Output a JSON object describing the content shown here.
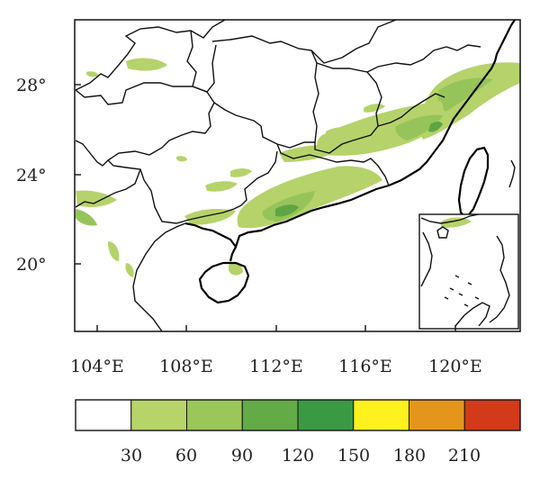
{
  "map": {
    "lat_ticks": [
      "28°",
      "24°",
      "20°"
    ],
    "lon_ticks": [
      "104°E",
      "108°E",
      "112°E",
      "116°E",
      "120°E"
    ],
    "lat_range": [
      17,
      31
    ],
    "lon_range": [
      103,
      123
    ],
    "precip_colors": {
      "light": "#b5d36a",
      "mid": "#96c45a",
      "dark": "#5fa543",
      "darker": "#3d9a45"
    }
  },
  "colorbar": {
    "labels": [
      "30",
      "60",
      "90",
      "120",
      "150",
      "180",
      "210"
    ],
    "colors": [
      "#ffffff",
      "#b7d468",
      "#9ac65a",
      "#63ab46",
      "#3a9a44",
      "#fff11e",
      "#e4961c",
      "#d33a1a"
    ]
  }
}
